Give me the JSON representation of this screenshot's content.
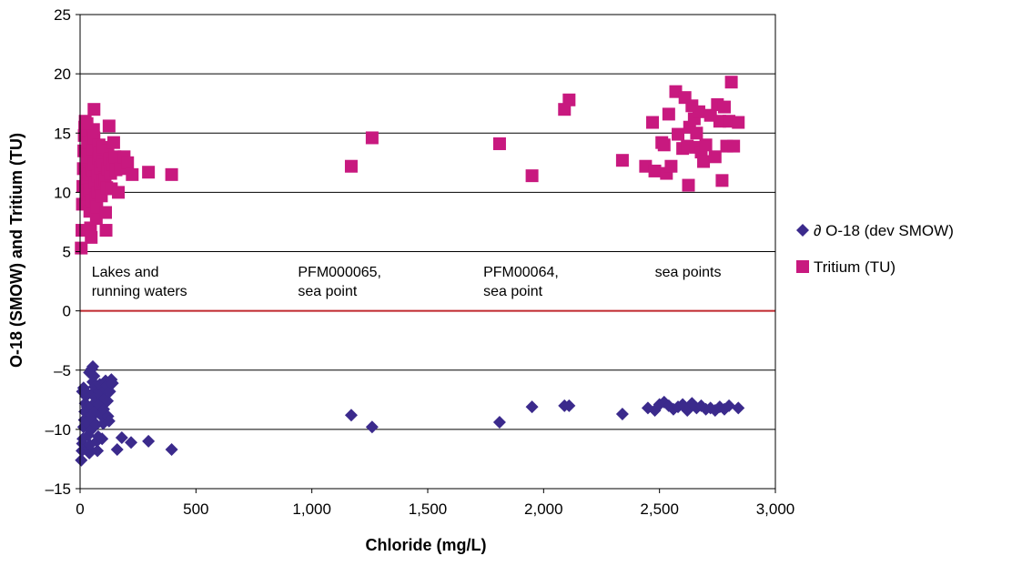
{
  "chart_data": {
    "type": "scatter",
    "title": "",
    "xlabel": "Chloride (mg/L)",
    "ylabel": "O-18 (SMOW) and Tritium (TU)",
    "xlim": [
      0,
      3000
    ],
    "ylim": [
      -15,
      25
    ],
    "xticks": [
      0,
      500,
      1000,
      1500,
      2000,
      2500,
      3000
    ],
    "xtick_labels": [
      "0",
      "500",
      "1,000",
      "1,500",
      "2,000",
      "2,500",
      "3,000"
    ],
    "yticks": [
      -15,
      -10,
      -5,
      0,
      5,
      10,
      15,
      20,
      25
    ],
    "ytick_labels": [
      "–15",
      "–10",
      "–5",
      "0",
      "5",
      "10",
      "15",
      "20",
      "25"
    ],
    "grid": "horizontal",
    "legend": "right",
    "zero_line_color": "#c0282d",
    "annotations": [
      {
        "lines": [
          "Lakes and",
          "running waters"
        ],
        "x": 50,
        "y": 2.9
      },
      {
        "lines": [
          "PFM000065,",
          "sea point"
        ],
        "x": 940,
        "y": 2.9
      },
      {
        "lines": [
          "PFM00064,",
          "sea point"
        ],
        "x": 1740,
        "y": 2.9
      },
      {
        "lines": [
          "sea points"
        ],
        "x": 2480,
        "y": 2.9
      }
    ],
    "series": [
      {
        "name": "∂ O-18 (dev SMOW)",
        "marker": "diamond",
        "color": "#3b2a8c",
        "points": [
          [
            5,
            -12.6
          ],
          [
            8,
            -11.8
          ],
          [
            10,
            -11.2
          ],
          [
            12,
            -10.8
          ],
          [
            15,
            -9.8
          ],
          [
            18,
            -9.2
          ],
          [
            20,
            -8.5
          ],
          [
            22,
            -7.8
          ],
          [
            25,
            -7.2
          ],
          [
            10,
            -6.8
          ],
          [
            15,
            -6.5
          ],
          [
            28,
            -6.9
          ],
          [
            30,
            -8.1
          ],
          [
            32,
            -9.5
          ],
          [
            35,
            -10.5
          ],
          [
            38,
            -11.6
          ],
          [
            40,
            -12.0
          ],
          [
            42,
            -11.3
          ],
          [
            45,
            -10.1
          ],
          [
            48,
            -9.0
          ],
          [
            50,
            -8.0
          ],
          [
            52,
            -7.0
          ],
          [
            55,
            -6.0
          ],
          [
            40,
            -5.2
          ],
          [
            50,
            -4.9
          ],
          [
            55,
            -4.7
          ],
          [
            60,
            -5.5
          ],
          [
            62,
            -6.4
          ],
          [
            65,
            -7.3
          ],
          [
            68,
            -8.4
          ],
          [
            70,
            -9.6
          ],
          [
            72,
            -11.0
          ],
          [
            75,
            -11.8
          ],
          [
            78,
            -10.6
          ],
          [
            80,
            -7.9
          ],
          [
            82,
            -6.8
          ],
          [
            85,
            -6.2
          ],
          [
            88,
            -7.1
          ],
          [
            90,
            -8.8
          ],
          [
            95,
            -10.8
          ],
          [
            100,
            -9.5
          ],
          [
            102,
            -8.3
          ],
          [
            105,
            -7.4
          ],
          [
            108,
            -6.6
          ],
          [
            110,
            -5.9
          ],
          [
            115,
            -6.3
          ],
          [
            118,
            -7.6
          ],
          [
            120,
            -8.9
          ],
          [
            125,
            -9.3
          ],
          [
            128,
            -6.8
          ],
          [
            130,
            -6.0
          ],
          [
            135,
            -5.8
          ],
          [
            140,
            -6.1
          ],
          [
            160,
            -11.7
          ],
          [
            180,
            -10.7
          ],
          [
            220,
            -11.1
          ],
          [
            295,
            -11.0
          ],
          [
            395,
            -11.7
          ],
          [
            1170,
            -8.8
          ],
          [
            1260,
            -9.8
          ],
          [
            1810,
            -9.4
          ],
          [
            1950,
            -8.1
          ],
          [
            2090,
            -8.0
          ],
          [
            2110,
            -8.0
          ],
          [
            2340,
            -8.7
          ],
          [
            2450,
            -8.2
          ],
          [
            2480,
            -8.4
          ],
          [
            2500,
            -7.9
          ],
          [
            2520,
            -7.7
          ],
          [
            2540,
            -8.0
          ],
          [
            2560,
            -8.3
          ],
          [
            2580,
            -8.1
          ],
          [
            2600,
            -7.9
          ],
          [
            2620,
            -8.4
          ],
          [
            2640,
            -7.8
          ],
          [
            2660,
            -8.2
          ],
          [
            2680,
            -8.0
          ],
          [
            2700,
            -8.3
          ],
          [
            2720,
            -8.2
          ],
          [
            2740,
            -8.4
          ],
          [
            2760,
            -8.1
          ],
          [
            2780,
            -8.3
          ],
          [
            2800,
            -8.0
          ],
          [
            2840,
            -8.2
          ]
        ]
      },
      {
        "name": "Tritium (TU)",
        "marker": "square",
        "color": "#c8197f",
        "points": [
          [
            5,
            5.3
          ],
          [
            8,
            6.8
          ],
          [
            10,
            9.0
          ],
          [
            12,
            10.5
          ],
          [
            14,
            12.0
          ],
          [
            16,
            13.5
          ],
          [
            18,
            14.8
          ],
          [
            20,
            15.5
          ],
          [
            22,
            16.0
          ],
          [
            25,
            11.2
          ],
          [
            28,
            9.8
          ],
          [
            30,
            12.8
          ],
          [
            32,
            14.2
          ],
          [
            35,
            13.0
          ],
          [
            38,
            11.5
          ],
          [
            40,
            10.2
          ],
          [
            42,
            8.4
          ],
          [
            45,
            7.0
          ],
          [
            48,
            6.2
          ],
          [
            50,
            9.3
          ],
          [
            52,
            11.8
          ],
          [
            55,
            13.7
          ],
          [
            58,
            15.3
          ],
          [
            60,
            14.6
          ],
          [
            62,
            12.4
          ],
          [
            65,
            10.8
          ],
          [
            68,
            9.5
          ],
          [
            70,
            7.8
          ],
          [
            72,
            8.8
          ],
          [
            75,
            10.0
          ],
          [
            78,
            11.4
          ],
          [
            80,
            12.9
          ],
          [
            82,
            14.0
          ],
          [
            85,
            13.3
          ],
          [
            88,
            12.1
          ],
          [
            90,
            10.6
          ],
          [
            92,
            9.7
          ],
          [
            95,
            11.0
          ],
          [
            98,
            12.6
          ],
          [
            100,
            13.8
          ],
          [
            105,
            12.3
          ],
          [
            108,
            11.1
          ],
          [
            110,
            8.3
          ],
          [
            112,
            6.8
          ],
          [
            115,
            10.4
          ],
          [
            118,
            12.0
          ],
          [
            120,
            13.5
          ],
          [
            125,
            15.6
          ],
          [
            128,
            12.8
          ],
          [
            132,
            11.6
          ],
          [
            135,
            10.3
          ],
          [
            140,
            12.4
          ],
          [
            145,
            14.2
          ],
          [
            150,
            13.0
          ],
          [
            155,
            11.9
          ],
          [
            165,
            10.0
          ],
          [
            175,
            12.0
          ],
          [
            190,
            13.0
          ],
          [
            205,
            12.5
          ],
          [
            225,
            11.5
          ],
          [
            60,
            17.0
          ],
          [
            30,
            15.8
          ],
          [
            295,
            11.7
          ],
          [
            395,
            11.5
          ],
          [
            1170,
            12.2
          ],
          [
            1260,
            14.6
          ],
          [
            1810,
            14.1
          ],
          [
            1950,
            11.4
          ],
          [
            2090,
            17.0
          ],
          [
            2110,
            17.8
          ],
          [
            2340,
            12.7
          ],
          [
            2440,
            12.2
          ],
          [
            2470,
            15.9
          ],
          [
            2480,
            11.8
          ],
          [
            2510,
            14.2
          ],
          [
            2520,
            14.0
          ],
          [
            2530,
            11.6
          ],
          [
            2540,
            16.6
          ],
          [
            2550,
            12.2
          ],
          [
            2570,
            18.5
          ],
          [
            2580,
            14.9
          ],
          [
            2600,
            13.7
          ],
          [
            2610,
            18.0
          ],
          [
            2620,
            13.9
          ],
          [
            2625,
            10.6
          ],
          [
            2630,
            15.5
          ],
          [
            2640,
            17.3
          ],
          [
            2650,
            16.2
          ],
          [
            2655,
            13.8
          ],
          [
            2660,
            15.0
          ],
          [
            2670,
            16.8
          ],
          [
            2680,
            13.4
          ],
          [
            2690,
            12.6
          ],
          [
            2700,
            14.0
          ],
          [
            2720,
            16.5
          ],
          [
            2740,
            13.0
          ],
          [
            2750,
            17.4
          ],
          [
            2760,
            16.0
          ],
          [
            2770,
            11.0
          ],
          [
            2780,
            17.2
          ],
          [
            2790,
            13.9
          ],
          [
            2800,
            16.0
          ],
          [
            2810,
            19.3
          ],
          [
            2820,
            13.9
          ],
          [
            2840,
            15.9
          ]
        ]
      }
    ]
  }
}
